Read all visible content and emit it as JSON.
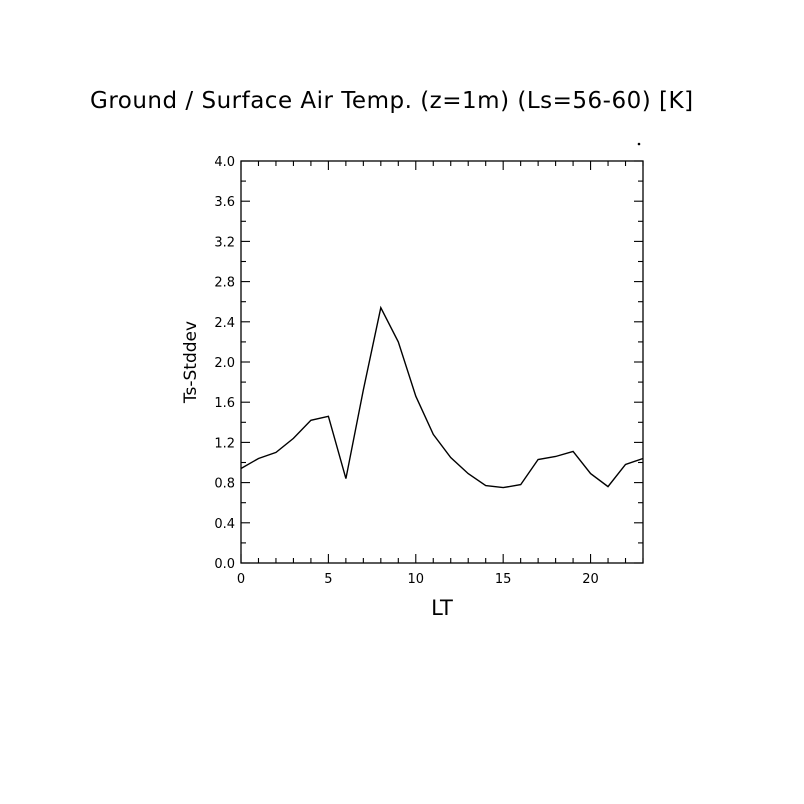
{
  "title": "Ground / Surface Air Temp. (z=1m) (Ls=56-60) [K]",
  "chart_data": {
    "type": "line",
    "title": "Ground / Surface Air Temp. (z=1m) (Ls=56-60) [K]",
    "xlabel": "LT",
    "ylabel": "Ts-Stddev",
    "xlim": [
      0,
      23
    ],
    "ylim": [
      0,
      4.0
    ],
    "x_ticks": [
      "0",
      "5",
      "10",
      "15",
      "20"
    ],
    "y_ticks": [
      "0.0",
      "0.4",
      "0.8",
      "1.2",
      "1.6",
      "2.0",
      "2.4",
      "2.8",
      "3.2",
      "3.6",
      "4.0"
    ],
    "grid": false,
    "x": [
      0,
      1,
      2,
      3,
      4,
      5,
      6,
      7,
      8,
      9,
      10,
      11,
      12,
      13,
      14,
      15,
      16,
      17,
      18,
      19,
      20,
      21,
      22,
      23
    ],
    "values": [
      0.94,
      1.04,
      1.1,
      1.24,
      1.42,
      1.46,
      0.84,
      1.72,
      2.54,
      2.2,
      1.66,
      1.28,
      1.05,
      0.89,
      0.77,
      0.75,
      0.78,
      1.03,
      1.06,
      1.11,
      0.89,
      0.76,
      0.98,
      1.04
    ]
  }
}
